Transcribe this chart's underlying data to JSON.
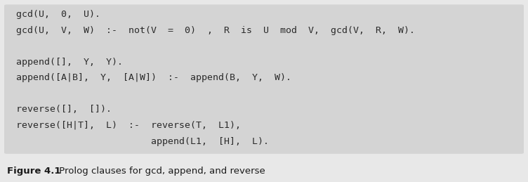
{
  "figure_bg": "#e8e8e8",
  "box_bg": "#d4d4d4",
  "text_color": "#2a2a2a",
  "caption_color": "#1a1a1a",
  "code_lines": [
    "gcd(U,  0,  U).",
    "gcd(U,  V,  W)  :-  not(V  =  0)  ,  R  is  U  mod  V,  gcd(V,  R,  W).",
    "",
    "append([],  Y,  Y).",
    "append([A|B],  Y,  [A|W])  :-  append(B,  Y,  W).",
    "",
    "reverse([],  []).",
    "reverse([H|T],  L)  :-  reverse(T,  L1),",
    "                        append(L1,  [H],  L)."
  ],
  "code_fontsize": 9.5,
  "caption_fontsize": 9.5,
  "caption_bold": "Figure 4.1",
  "caption_normal": " Prolog clauses for gcd, append, and reverse"
}
